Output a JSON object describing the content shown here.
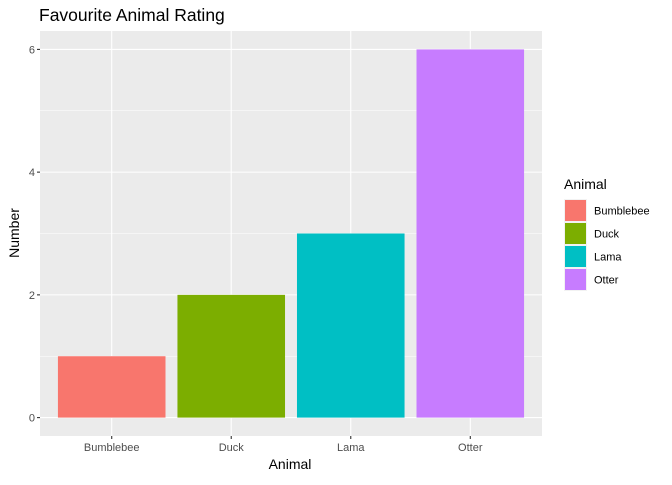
{
  "chart_data": {
    "type": "bar",
    "title": "Favourite Animal Rating",
    "xlabel": "Animal",
    "ylabel": "Number",
    "categories": [
      "Bumblebee",
      "Duck",
      "Lama",
      "Otter"
    ],
    "values": [
      1,
      2,
      3,
      6
    ],
    "colors": [
      "#F8766D",
      "#7CAE00",
      "#00BFC4",
      "#C77CFF"
    ],
    "ylim": [
      -0.3,
      6.3
    ],
    "yticks": [
      0,
      2,
      4,
      6
    ],
    "grid": true,
    "panel_background": "#EBEBEB",
    "grid_color": "#FFFFFF",
    "legend": {
      "title": "Animal",
      "position": "right",
      "entries": [
        "Bumblebee",
        "Duck",
        "Lama",
        "Otter"
      ]
    }
  }
}
